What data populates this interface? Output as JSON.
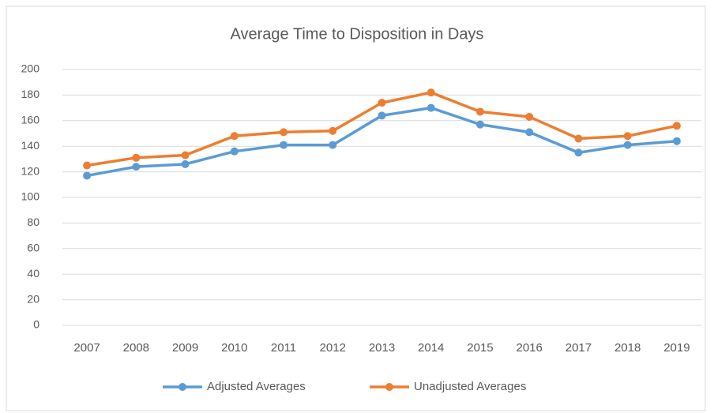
{
  "chart_data": {
    "type": "line",
    "title": "Average Time to Disposition in Days",
    "categories": [
      "2007",
      "2008",
      "2009",
      "2010",
      "2011",
      "2012",
      "2013",
      "2014",
      "2015",
      "2016",
      "2017",
      "2018",
      "2019"
    ],
    "series": [
      {
        "name": "Adjusted Averages",
        "color": "#5b9bd5",
        "values": [
          117,
          124,
          126,
          136,
          141,
          141,
          164,
          170,
          157,
          151,
          135,
          141,
          144
        ]
      },
      {
        "name": "Unadjusted Averages",
        "color": "#ed7d31",
        "values": [
          125,
          131,
          133,
          148,
          151,
          152,
          174,
          182,
          167,
          163,
          146,
          148,
          156
        ]
      }
    ],
    "ylim": [
      0,
      200
    ],
    "yticks": [
      0,
      20,
      40,
      60,
      80,
      100,
      120,
      140,
      160,
      180,
      200
    ],
    "grid": true,
    "legend": "bottom"
  }
}
